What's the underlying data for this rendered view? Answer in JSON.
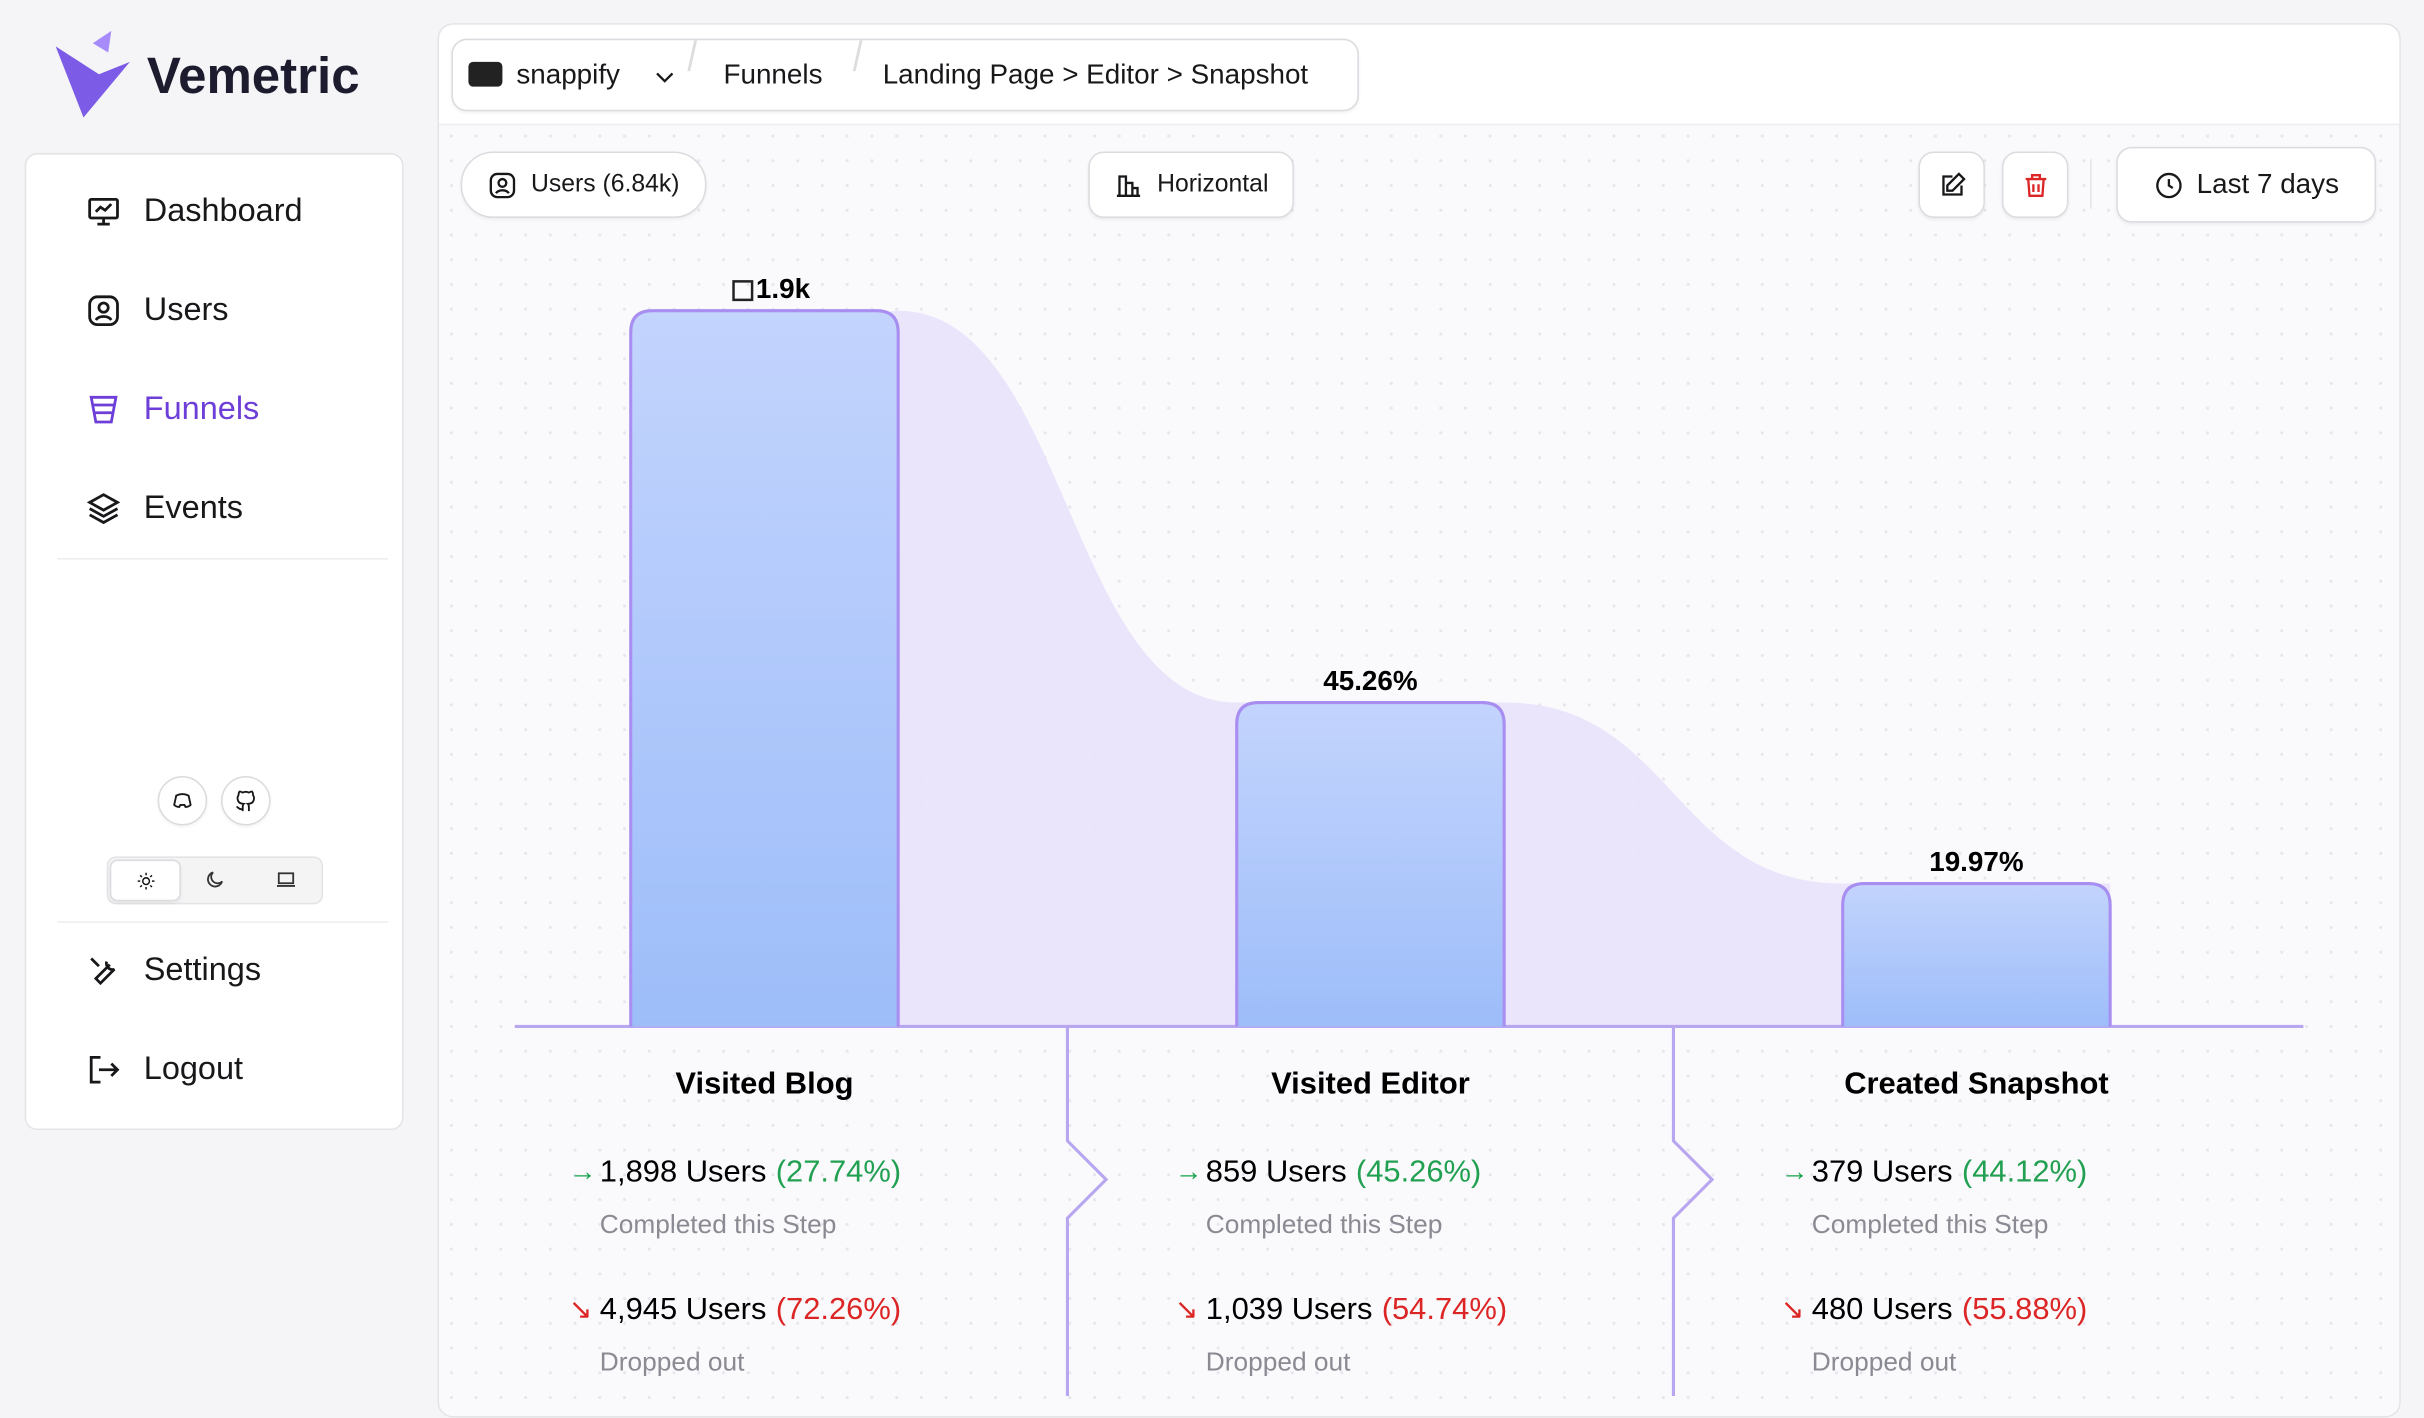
{
  "brand": "Vemetric",
  "nav": {
    "items": [
      "Dashboard",
      "Users",
      "Funnels",
      "Events"
    ],
    "active": "Funnels",
    "bottom": [
      "Settings",
      "Logout"
    ]
  },
  "header": {
    "project": "snappify",
    "breadcrumb": [
      "Funnels",
      "Landing Page > Editor > Snapshot"
    ]
  },
  "toolbar": {
    "users": "Users (6.84k)",
    "orientation": "Horizontal",
    "range": "Last 7 days"
  },
  "funnel": {
    "values": [
      1898,
      859,
      379
    ],
    "bar_labels": [
      "1.9k",
      "45.26%",
      "19.97%"
    ],
    "steps": [
      {
        "name": "Visited Blog",
        "completed": "1,898 Users",
        "completed_pct": "(27.74%)",
        "completed_caption": "Completed this Step",
        "dropped": "4,945 Users",
        "dropped_pct": "(72.26%)",
        "dropped_caption": "Dropped out"
      },
      {
        "name": "Visited Editor",
        "completed": "859 Users",
        "completed_pct": "(45.26%)",
        "completed_caption": "Completed this Step",
        "dropped": "1,039 Users",
        "dropped_pct": "(54.74%)",
        "dropped_caption": "Dropped out"
      },
      {
        "name": "Created Snapshot",
        "completed": "379 Users",
        "completed_pct": "(44.12%)",
        "completed_caption": "Completed this Step",
        "dropped": "480 Users",
        "dropped_pct": "(55.88%)",
        "dropped_caption": "Dropped out"
      }
    ]
  }
}
